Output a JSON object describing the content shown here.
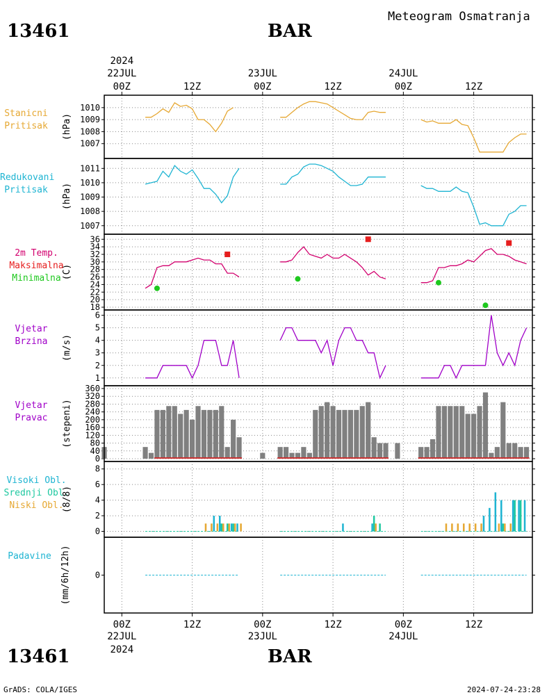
{
  "header": {
    "station_id": "13461",
    "station_name": "BAR",
    "title": "Meteogram Osmatranja"
  },
  "footer": {
    "station_id": "13461",
    "station_name": "BAR",
    "credit": "GrADS: COLA/IGES",
    "timestamp": "2024-07-24-23:28"
  },
  "time_axis": {
    "top_year": "2024",
    "bottom_year": "2024",
    "ticks": [
      {
        "label": "00Z",
        "date": "22JUL",
        "h": 0
      },
      {
        "label": "12Z",
        "date": "",
        "h": 12
      },
      {
        "label": "00Z",
        "date": "23JUL",
        "h": 24
      },
      {
        "label": "12Z",
        "date": "",
        "h": 36
      },
      {
        "label": "00Z",
        "date": "24JUL",
        "h": 48
      },
      {
        "label": "12Z",
        "date": "",
        "h": 60
      }
    ]
  },
  "panel_labels": {
    "pressure": {
      "lines": [
        "Stanicni",
        "Pritisak"
      ],
      "unit": "(hPa)",
      "colors": [
        "#e6a833",
        "#e6a833"
      ]
    },
    "reduced": {
      "lines": [
        "Redukovani",
        "Pritisak"
      ],
      "unit": "(hPa)",
      "colors": [
        "#1eb4d2",
        "#1eb4d2"
      ]
    },
    "temp": {
      "lines": [
        "2m Temp.",
        "Maksimalna",
        "Minimalna"
      ],
      "unit": "(C)",
      "colors": [
        "#d2006e",
        "#e61e1e",
        "#1ec81e"
      ]
    },
    "wind_speed": {
      "lines": [
        "Vjetar",
        "Brzina"
      ],
      "unit": "(m/s)",
      "colors": [
        "#a000c8",
        "#a000c8"
      ]
    },
    "wind_dir": {
      "lines": [
        "Vjetar",
        "Pravac"
      ],
      "unit": "(stepeni)",
      "colors": [
        "#a000c8",
        "#a000c8"
      ]
    },
    "clouds": {
      "lines": [
        "Visoki Obl.",
        "Srednji Obl.",
        "Niski Obl."
      ],
      "unit": "(8/8)",
      "colors": [
        "#1eb4d2",
        "#1ec8a0",
        "#e6a833"
      ]
    },
    "precip": {
      "lines": [
        "Padavine"
      ],
      "unit": "(mm/6h/12h)",
      "colors": [
        "#1eb4d2"
      ]
    }
  },
  "chart_data": {
    "type": "line",
    "x_unit": "hours since 2024-07-22 00Z",
    "x_range": [
      -3,
      70
    ],
    "panels": [
      {
        "id": "pressure",
        "type": "line",
        "color": "#e6a833",
        "ylim": [
          1006,
          1010.8
        ],
        "yticks": [
          1007,
          1008,
          1009,
          1010
        ],
        "segments": [
          {
            "x": [
              4,
              5,
              6,
              7,
              8,
              9,
              10,
              11,
              12,
              13,
              14,
              15,
              16,
              17,
              18,
              19
            ],
            "y": [
              1009.2,
              1009.2,
              1009.5,
              1009.9,
              1009.6,
              1010.4,
              1010.1,
              1010.2,
              1009.9,
              1009.0,
              1009.0,
              1008.6,
              1008.0,
              1008.7,
              1009.7,
              1010.0
            ]
          },
          {
            "x": [
              27,
              28,
              29,
              30,
              31,
              32,
              33,
              34,
              35,
              36,
              37,
              38,
              39,
              40,
              41,
              42,
              43,
              44,
              45
            ],
            "y": [
              1009.2,
              1009.2,
              1009.6,
              1010.0,
              1010.3,
              1010.5,
              1010.5,
              1010.4,
              1010.3,
              1010.0,
              1009.7,
              1009.4,
              1009.1,
              1009.0,
              1009.0,
              1009.6,
              1009.7,
              1009.6,
              1009.6
            ]
          },
          {
            "x": [
              51,
              52,
              53,
              54,
              55,
              56,
              57,
              58,
              59,
              60,
              61,
              62,
              63,
              64,
              65,
              66,
              67,
              68,
              69
            ],
            "y": [
              1009.0,
              1008.8,
              1008.9,
              1008.7,
              1008.7,
              1008.7,
              1009.0,
              1008.6,
              1008.5,
              1007.5,
              1006.3,
              1006.3,
              1006.3,
              1006.3,
              1006.3,
              1007.1,
              1007.5,
              1007.8,
              1007.8
            ]
          }
        ]
      },
      {
        "id": "reduced",
        "type": "line",
        "color": "#1eb4d2",
        "ylim": [
          1006.6,
          1011.5
        ],
        "yticks": [
          1007,
          1008,
          1009,
          1010,
          1011
        ],
        "segments": [
          {
            "x": [
              4,
              5,
              6,
              7,
              8,
              9,
              10,
              11,
              12,
              13,
              14,
              15,
              16,
              17,
              18,
              19,
              20
            ],
            "y": [
              1009.9,
              1010.0,
              1010.1,
              1010.8,
              1010.4,
              1011.2,
              1010.8,
              1010.6,
              1010.9,
              1010.3,
              1009.6,
              1009.6,
              1009.2,
              1008.6,
              1009.1,
              1010.4,
              1011.0
            ]
          },
          {
            "x": [
              27,
              28,
              29,
              30,
              31,
              32,
              33,
              34,
              35,
              36,
              37,
              38,
              39,
              40,
              41,
              42,
              43,
              44,
              45
            ],
            "y": [
              1009.9,
              1009.9,
              1010.4,
              1010.6,
              1011.1,
              1011.3,
              1011.3,
              1011.2,
              1011.0,
              1010.8,
              1010.4,
              1010.1,
              1009.8,
              1009.8,
              1009.9,
              1010.4,
              1010.4,
              1010.4,
              1010.4
            ]
          },
          {
            "x": [
              51,
              52,
              53,
              54,
              55,
              56,
              57,
              58,
              59,
              60,
              61,
              62,
              63,
              64,
              65,
              66,
              67,
              68,
              69
            ],
            "y": [
              1009.8,
              1009.6,
              1009.6,
              1009.4,
              1009.4,
              1009.4,
              1009.7,
              1009.4,
              1009.3,
              1008.3,
              1007.1,
              1007.2,
              1007.0,
              1007.0,
              1007.0,
              1007.8,
              1008.0,
              1008.4,
              1008.4
            ]
          }
        ]
      },
      {
        "id": "temp",
        "type": "line",
        "color": "#d2006e",
        "ylim": [
          18,
          36.6
        ],
        "yticks": [
          18,
          20,
          22,
          24,
          26,
          28,
          30,
          32,
          34,
          36
        ],
        "segments": [
          {
            "x": [
              4,
              5,
              6,
              7,
              8,
              9,
              10,
              11,
              12,
              13,
              14,
              15,
              16,
              17,
              18,
              19,
              20
            ],
            "y": [
              23,
              24,
              28.5,
              29,
              29,
              30,
              30,
              30,
              30.5,
              31,
              30.5,
              30.5,
              29.5,
              29.5,
              27,
              27,
              26
            ]
          },
          {
            "x": [
              27,
              28,
              29,
              30,
              31,
              32,
              33,
              34,
              35,
              36,
              37,
              38,
              39,
              40,
              41,
              42,
              43,
              44,
              45
            ],
            "y": [
              30,
              30,
              30.5,
              32.5,
              34,
              32,
              31.5,
              31,
              32,
              31,
              31,
              32,
              31,
              30,
              28.5,
              26.5,
              27.5,
              26,
              25.5
            ]
          },
          {
            "x": [
              51,
              52,
              53,
              54,
              55,
              56,
              57,
              58,
              59,
              60,
              61,
              62,
              63,
              64,
              65,
              66,
              67,
              68,
              69
            ],
            "y": [
              24.5,
              24.5,
              25,
              28.5,
              28.5,
              29,
              29,
              29.5,
              30.5,
              30,
              31.5,
              33,
              33.5,
              32,
              32,
              31.5,
              30.5,
              30,
              29.5
            ]
          }
        ],
        "max_points": {
          "color": "#e61e1e",
          "x": [
            18,
            42,
            66
          ],
          "y": [
            32,
            36,
            35
          ]
        },
        "min_points": {
          "color": "#1ec81e",
          "x": [
            6,
            30,
            54
          ],
          "y": [
            23,
            25.5,
            24.5
          ]
        },
        "min_points_extra": {
          "x": [
            62
          ],
          "y": [
            18.5
          ]
        }
      },
      {
        "id": "wind_speed",
        "type": "line",
        "color": "#a000c8",
        "ylim": [
          0.6,
          6.2
        ],
        "yticks": [
          1,
          2,
          3,
          4,
          5,
          6
        ],
        "segments": [
          {
            "x": [
              4,
              5,
              6,
              7,
              8,
              9,
              10,
              11,
              12,
              13,
              14,
              15,
              16,
              17,
              18,
              19,
              20
            ],
            "y": [
              1,
              1,
              1,
              2,
              2,
              2,
              2,
              2,
              1,
              2,
              4,
              4,
              4,
              2,
              2,
              4,
              1
            ]
          },
          {
            "x": [
              27,
              28,
              29,
              30,
              31,
              32,
              33,
              34,
              35,
              36,
              37,
              38,
              39,
              40,
              41,
              42,
              43,
              44,
              45
            ],
            "y": [
              4,
              5,
              5,
              4,
              4,
              4,
              4,
              3,
              4,
              2,
              4,
              5,
              5,
              4,
              4,
              3,
              3,
              1,
              2
            ]
          },
          {
            "x": [
              51,
              52,
              53,
              54,
              55,
              56,
              57,
              58,
              59,
              60,
              61,
              62,
              63,
              64,
              65,
              66,
              67,
              68,
              69
            ],
            "y": [
              1,
              1,
              1,
              1,
              2,
              2,
              1,
              2,
              2,
              2,
              2,
              2,
              6,
              3,
              2,
              3,
              2,
              4,
              5
            ]
          }
        ]
      },
      {
        "id": "wind_dir",
        "type": "bar",
        "color": "#808080",
        "ylim": [
          0,
          360
        ],
        "yticks": [
          0,
          40,
          80,
          120,
          160,
          200,
          240,
          280,
          320,
          360
        ],
        "x": [
          -3,
          4,
          5,
          6,
          7,
          8,
          9,
          10,
          11,
          12,
          13,
          14,
          15,
          16,
          17,
          18,
          19,
          20,
          24,
          27,
          28,
          29,
          30,
          31,
          32,
          33,
          34,
          35,
          36,
          37,
          38,
          39,
          40,
          41,
          42,
          43,
          44,
          45,
          47,
          51,
          52,
          53,
          54,
          55,
          56,
          57,
          58,
          59,
          60,
          61,
          62,
          63,
          64,
          65,
          66,
          67,
          68,
          69
        ],
        "values": [
          60,
          60,
          30,
          250,
          250,
          270,
          270,
          230,
          250,
          200,
          270,
          250,
          250,
          250,
          270,
          60,
          200,
          110,
          30,
          60,
          60,
          30,
          30,
          60,
          30,
          250,
          270,
          290,
          270,
          250,
          250,
          250,
          250,
          270,
          290,
          110,
          80,
          80,
          80,
          60,
          60,
          100,
          270,
          270,
          270,
          270,
          270,
          230,
          230,
          270,
          340,
          30,
          60,
          290,
          80,
          80,
          60,
          60
        ]
      },
      {
        "id": "clouds",
        "type": "bar",
        "ylim": [
          -0.4,
          8.6
        ],
        "yticks": [
          0,
          2,
          4,
          6,
          8
        ],
        "series": [
          {
            "name": "Visoki Obl.",
            "color": "#1eb4d2",
            "x": [
              16,
              17,
              19,
              20,
              38,
              43,
              62,
              63,
              64,
              65,
              67,
              68,
              69
            ],
            "values": [
              2,
              2,
              1,
              1,
              1,
              1,
              2,
              3,
              5,
              4,
              4,
              4,
              4
            ]
          },
          {
            "name": "Srednji Obl.",
            "color": "#1ec8a0",
            "x": [
              17,
              18,
              19,
              43,
              44,
              65,
              67,
              68
            ],
            "values": [
              1,
              1,
              1,
              2,
              1,
              1,
              4,
              4
            ]
          },
          {
            "name": "Niski Obl.",
            "color": "#e6a833",
            "x": [
              14,
              15,
              16,
              17,
              18,
              19,
              20,
              43,
              55,
              56,
              57,
              58,
              59,
              60,
              61,
              64,
              65,
              66
            ],
            "values": [
              1,
              1,
              1,
              1,
              1,
              1,
              1,
              1,
              1,
              1,
              1,
              1,
              1,
              1,
              1,
              1,
              1,
              1
            ]
          }
        ]
      },
      {
        "id": "precip",
        "type": "line",
        "color": "#1eb4d2",
        "ylim": [
          -4,
          4
        ],
        "yticks": [
          0
        ],
        "segments": [
          {
            "x": [
              4,
              20
            ],
            "y": [
              0,
              0
            ]
          },
          {
            "x": [
              27,
              45
            ],
            "y": [
              0,
              0
            ]
          },
          {
            "x": [
              51,
              69
            ],
            "y": [
              0,
              0
            ]
          }
        ]
      }
    ]
  }
}
